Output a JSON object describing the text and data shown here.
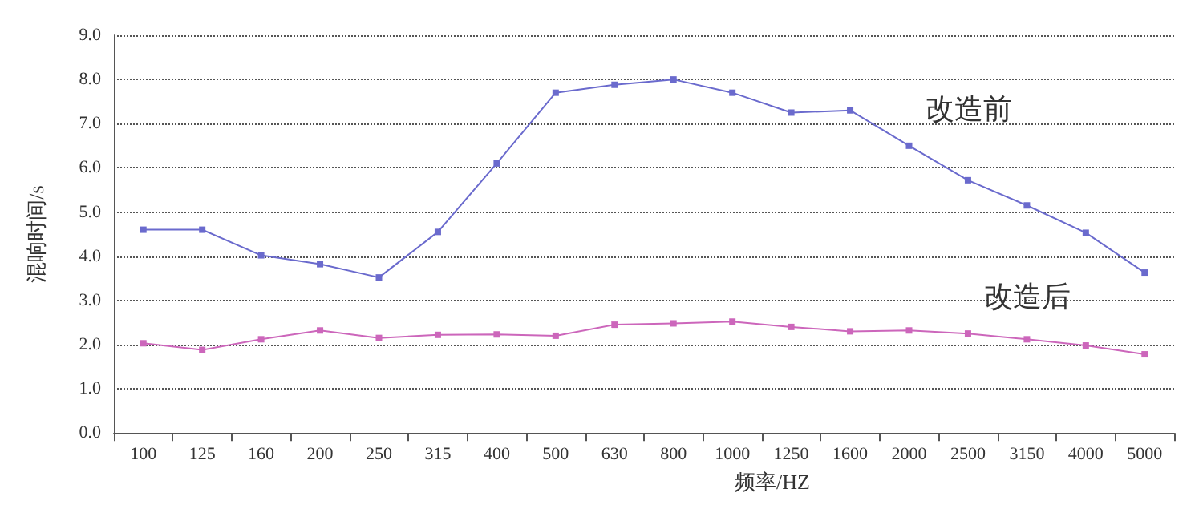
{
  "chart_data": {
    "type": "line",
    "xlabel": "频率/HZ",
    "ylabel": "混响时间/s",
    "categories": [
      "100",
      "125",
      "160",
      "200",
      "250",
      "315",
      "400",
      "500",
      "630",
      "800",
      "1000",
      "1250",
      "1600",
      "2000",
      "2500",
      "3150",
      "4000",
      "5000"
    ],
    "series": [
      {
        "name": "改造前",
        "color": "#6a6acd",
        "values": [
          4.6,
          4.6,
          4.02,
          3.82,
          3.52,
          4.55,
          6.1,
          7.7,
          7.88,
          8.0,
          7.7,
          7.25,
          7.3,
          6.5,
          5.72,
          5.15,
          4.53,
          3.63
        ]
      },
      {
        "name": "改造后",
        "color": "#cc66bb",
        "values": [
          2.03,
          1.88,
          2.12,
          2.32,
          2.15,
          2.22,
          2.23,
          2.2,
          2.45,
          2.48,
          2.52,
          2.4,
          2.3,
          2.32,
          2.25,
          2.12,
          1.98,
          1.78
        ]
      }
    ],
    "ylim": [
      0,
      9
    ],
    "yticks": [
      {
        "value": 0,
        "label": "0.0"
      },
      {
        "value": 1,
        "label": "1.0"
      },
      {
        "value": 2,
        "label": "2.0"
      },
      {
        "value": 3,
        "label": "3.0"
      },
      {
        "value": 4,
        "label": "4.0"
      },
      {
        "value": 5,
        "label": "5.0"
      },
      {
        "value": 6,
        "label": "6.0"
      },
      {
        "value": 7,
        "label": "7.0"
      },
      {
        "value": 8,
        "label": "8.0"
      },
      {
        "value": 9,
        "label": "9.0"
      }
    ],
    "grid": "y",
    "legend": false,
    "marker": "square",
    "line_style": "solid"
  }
}
